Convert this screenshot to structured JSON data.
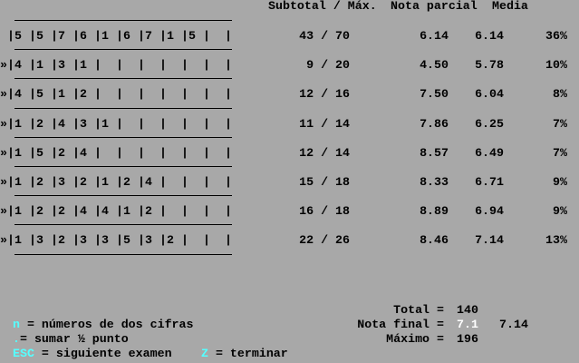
{
  "headers": {
    "subtotal": "Subtotal / Máx.",
    "nota_parcial": "Nota parcial",
    "media": "Media"
  },
  "rows": [
    {
      "marker": "",
      "scores": [
        "5",
        "5",
        "7",
        "6",
        "1",
        "6",
        "7",
        "1",
        "5",
        ""
      ],
      "subtotal": "43 / 70",
      "nota": "6.14",
      "media": "6.14",
      "pct": "36%"
    },
    {
      "marker": "»",
      "scores": [
        "4",
        "1",
        "3",
        "1",
        "",
        "",
        "",
        "",
        "",
        ""
      ],
      "subtotal": "9 / 20",
      "nota": "4.50",
      "media": "5.78",
      "pct": "10%"
    },
    {
      "marker": "»",
      "scores": [
        "4",
        "5",
        "1",
        "2",
        "",
        "",
        "",
        "",
        "",
        ""
      ],
      "subtotal": "12 / 16",
      "nota": "7.50",
      "media": "6.04",
      "pct": "8%"
    },
    {
      "marker": "»",
      "scores": [
        "1",
        "2",
        "4",
        "3",
        "1",
        "",
        "",
        "",
        "",
        ""
      ],
      "subtotal": "11 / 14",
      "nota": "7.86",
      "media": "6.25",
      "pct": "7%"
    },
    {
      "marker": "»",
      "scores": [
        "1",
        "5",
        "2",
        "4",
        "",
        "",
        "",
        "",
        "",
        ""
      ],
      "subtotal": "12 / 14",
      "nota": "8.57",
      "media": "6.49",
      "pct": "7%"
    },
    {
      "marker": "»",
      "scores": [
        "1",
        "2",
        "3",
        "2",
        "1",
        "2",
        "4",
        "",
        "",
        ""
      ],
      "subtotal": "15 / 18",
      "nota": "8.33",
      "media": "6.71",
      "pct": "9%"
    },
    {
      "marker": "»",
      "scores": [
        "1",
        "2",
        "2",
        "4",
        "4",
        "1",
        "2",
        "",
        "",
        ""
      ],
      "subtotal": "16 / 18",
      "nota": "8.89",
      "media": "6.94",
      "pct": "9%"
    },
    {
      "marker": "»",
      "scores": [
        "1",
        "3",
        "2",
        "3",
        "3",
        "5",
        "3",
        "2",
        "",
        ""
      ],
      "subtotal": "22 / 26",
      "nota": "8.46",
      "media": "7.14",
      "pct": "13%"
    }
  ],
  "summary": {
    "total_label": "Total =",
    "total_value": "140",
    "final_label": "Nota final =",
    "final_value": "7.1",
    "final_exact": "7.14",
    "max_label": "Máximo =",
    "max_value": "196"
  },
  "help": {
    "n_key": "n",
    "n_text": " = números de dos cifras",
    "dot_key": ".",
    "dot_text": "= sumar ½ punto",
    "esc_key": "ESC",
    "esc_text": " = siguiente examen",
    "z_key": "Z",
    "z_text": " = terminar"
  },
  "colors": {
    "background": "#a8a8a8",
    "key": "#55ffff",
    "highlight": "#ffffff"
  }
}
